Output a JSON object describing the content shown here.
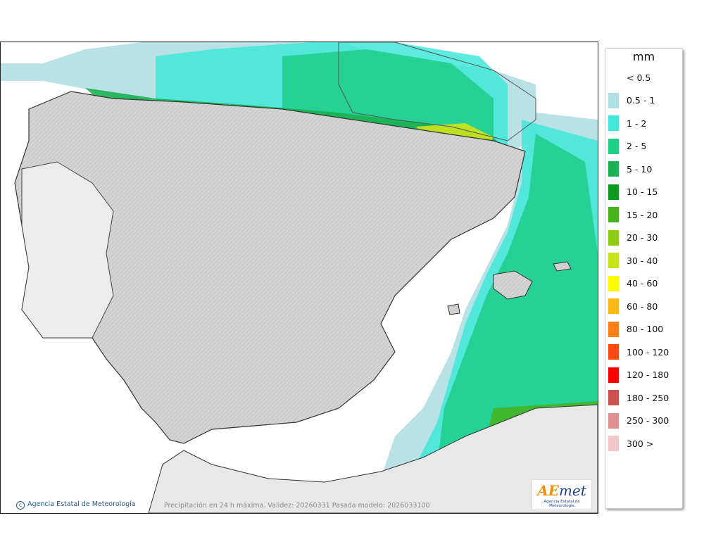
{
  "credit": "Agencia Estatal de Meteorología",
  "caption": "Precipitación en 24 h máxima. Validez: 20260331 Pasada modelo: 2026033100",
  "logo": {
    "mark_ae": "AE",
    "mark_rest": "met",
    "subtitle": "Agencia Estatal de Meteorología"
  },
  "legend": {
    "unit": "mm",
    "items": [
      {
        "label": "< 0.5",
        "color": null
      },
      {
        "label": "0.5 - 1",
        "color": "#b0dfe3"
      },
      {
        "label": "1 - 2",
        "color": "#3fe8d8"
      },
      {
        "label": "2 - 5",
        "color": "#1fcc88"
      },
      {
        "label": "5 - 10",
        "color": "#1bb052"
      },
      {
        "label": "10 - 15",
        "color": "#0e9a1e"
      },
      {
        "label": "15 - 20",
        "color": "#46b31e"
      },
      {
        "label": "20 - 30",
        "color": "#8cca16"
      },
      {
        "label": "30 - 40",
        "color": "#c6e21a"
      },
      {
        "label": "40 - 60",
        "color": "#fcfc00"
      },
      {
        "label": "60 - 80",
        "color": "#fcb819"
      },
      {
        "label": "80 - 100",
        "color": "#fc7e14"
      },
      {
        "label": "100 - 120",
        "color": "#fc4a12"
      },
      {
        "label": "120 - 180",
        "color": "#fc0000"
      },
      {
        "label": "180 - 250",
        "color": "#cd5050"
      },
      {
        "label": "250 - 300",
        "color": "#e09090"
      },
      {
        "label": "300 >",
        "color": "#f0c8c8"
      }
    ]
  }
}
